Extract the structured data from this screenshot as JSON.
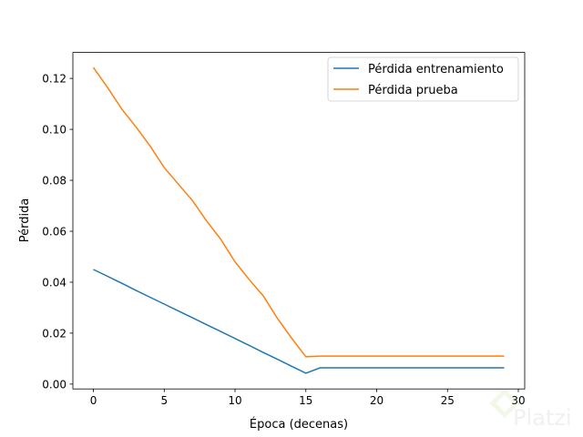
{
  "chart_data": {
    "type": "line",
    "title": "",
    "xlabel": "Época (decenas)",
    "ylabel": "Pérdida",
    "xlim": [
      -1.45,
      30.45
    ],
    "ylim": [
      -0.0019,
      0.1302
    ],
    "xticks": [
      0,
      5,
      10,
      15,
      20,
      25,
      30
    ],
    "xtick_labels": [
      "0",
      "5",
      "10",
      "15",
      "20",
      "25",
      "30"
    ],
    "yticks": [
      0,
      0.02,
      0.04,
      0.06,
      0.08,
      0.1,
      0.12
    ],
    "ytick_labels": [
      "0.00",
      "0.02",
      "0.04",
      "0.06",
      "0.08",
      "0.10",
      "0.12"
    ],
    "grid": false,
    "legend_position": "top-right",
    "x": [
      0,
      1,
      2,
      3,
      4,
      5,
      6,
      7,
      8,
      9,
      10,
      11,
      12,
      13,
      14,
      15,
      16,
      17,
      18,
      19,
      20,
      21,
      22,
      23,
      24,
      25,
      26,
      27,
      28,
      29
    ],
    "series": [
      {
        "name": "Pérdida entrenamiento",
        "color": "#1f77b4",
        "values": [
          0.045,
          0.0423,
          0.0396,
          0.0368,
          0.0341,
          0.0314,
          0.0287,
          0.026,
          0.0233,
          0.0206,
          0.0179,
          0.0152,
          0.0124,
          0.0097,
          0.007,
          0.0043,
          0.0064,
          0.0064,
          0.0064,
          0.0064,
          0.0064,
          0.0064,
          0.0064,
          0.0064,
          0.0064,
          0.0064,
          0.0064,
          0.0064,
          0.0064,
          0.0064
        ]
      },
      {
        "name": "Pérdida prueba",
        "color": "#ff7f0e",
        "values": [
          0.1243,
          0.1164,
          0.108,
          0.101,
          0.0935,
          0.085,
          0.0785,
          0.072,
          0.064,
          0.0568,
          0.048,
          0.041,
          0.0346,
          0.0257,
          0.018,
          0.0107,
          0.011,
          0.011,
          0.011,
          0.011,
          0.011,
          0.011,
          0.011,
          0.011,
          0.011,
          0.011,
          0.011,
          0.011,
          0.011,
          0.011
        ]
      }
    ]
  },
  "watermark": {
    "text": "Platzi"
  }
}
